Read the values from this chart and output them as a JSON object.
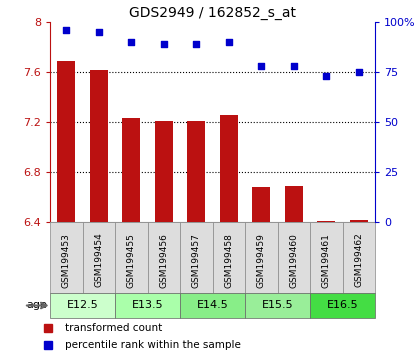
{
  "title": "GDS2949 / 162852_s_at",
  "samples": [
    "GSM199453",
    "GSM199454",
    "GSM199455",
    "GSM199456",
    "GSM199457",
    "GSM199458",
    "GSM199459",
    "GSM199460",
    "GSM199461",
    "GSM199462"
  ],
  "bar_values": [
    7.69,
    7.62,
    7.23,
    7.21,
    7.21,
    7.26,
    6.68,
    6.69,
    6.41,
    6.42
  ],
  "percentile_values": [
    96,
    95,
    90,
    89,
    89,
    90,
    78,
    78,
    73,
    75
  ],
  "ylim_left": [
    6.4,
    8.0
  ],
  "ylim_right": [
    0,
    100
  ],
  "yticks_left": [
    6.4,
    6.8,
    7.2,
    7.6,
    8.0
  ],
  "yticks_right": [
    0,
    25,
    50,
    75,
    100
  ],
  "ytick_labels_left": [
    "6.4",
    "6.8",
    "7.2",
    "7.6",
    "8"
  ],
  "ytick_labels_right": [
    "0",
    "25",
    "50",
    "75",
    "100%"
  ],
  "bar_color": "#BB1111",
  "dot_color": "#0000CC",
  "age_groups": [
    {
      "label": "E12.5",
      "samples": [
        0,
        1
      ],
      "color": "#CCFFCC"
    },
    {
      "label": "E13.5",
      "samples": [
        2,
        3
      ],
      "color": "#AAFFAA"
    },
    {
      "label": "E14.5",
      "samples": [
        4,
        5
      ],
      "color": "#88EE88"
    },
    {
      "label": "E15.5",
      "samples": [
        6,
        7
      ],
      "color": "#99EE99"
    },
    {
      "label": "E16.5",
      "samples": [
        8,
        9
      ],
      "color": "#44DD44"
    }
  ],
  "grid_lines": [
    6.8,
    7.2,
    7.6
  ],
  "legend_bar_label": "transformed count",
  "legend_dot_label": "percentile rank within the sample",
  "sample_box_color": "#DDDDDD",
  "sample_box_edge": "#888888"
}
